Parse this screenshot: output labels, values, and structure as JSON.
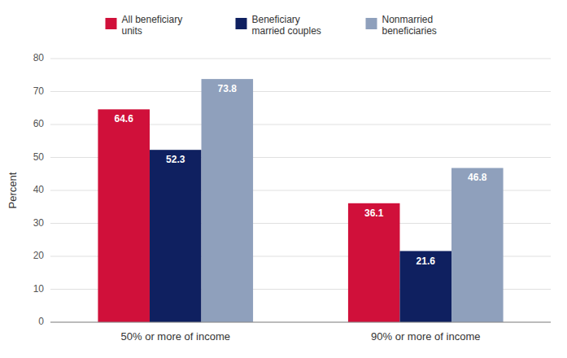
{
  "chart_data": {
    "type": "bar",
    "categories": [
      "50% or more of income",
      "90% or more of income"
    ],
    "series": [
      {
        "name": "All beneficiary\nunits",
        "color": "#d0103a",
        "values": [
          64.6,
          36.1
        ]
      },
      {
        "name": "Beneficiary\nmarried couples",
        "color": "#0f2060",
        "values": [
          52.3,
          21.6
        ]
      },
      {
        "name": "Nonmarried\nbeneficiaries",
        "color": "#8fa0bc",
        "values": [
          73.8,
          46.8
        ]
      }
    ],
    "ylabel": "Percent",
    "ylim": [
      0,
      80
    ],
    "yticks": [
      0,
      10,
      20,
      30,
      40,
      50,
      60,
      70,
      80
    ],
    "grid": true,
    "legend": "top",
    "data_labels": true
  }
}
